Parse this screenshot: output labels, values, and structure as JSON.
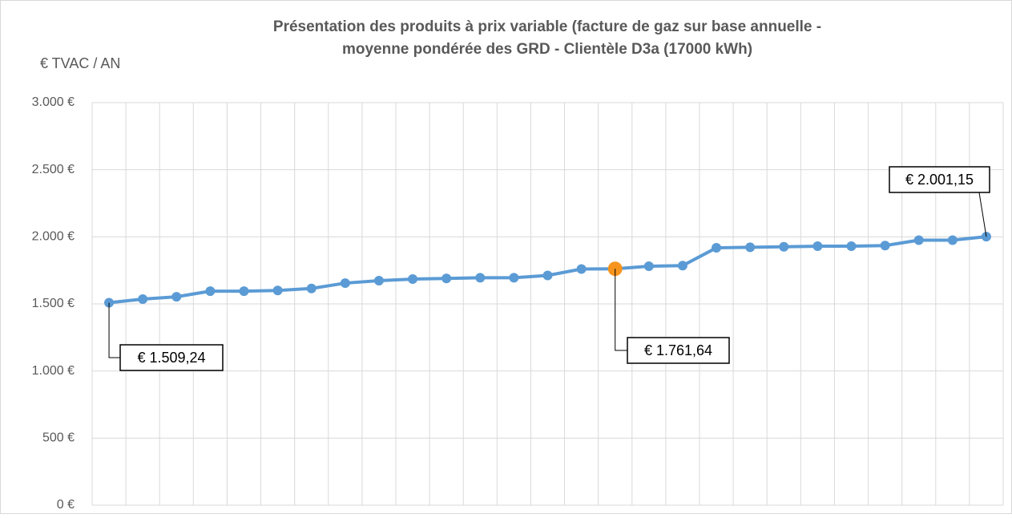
{
  "chart_data": {
    "type": "line",
    "title": [
      "Présentation des produits à prix variable  (facture de gaz sur base annuelle -",
      "moyenne pondérée des GRD - Clientèle D3a (17000 kWh)"
    ],
    "y_label": "€ TVAC / AN",
    "categories": [
      null,
      null,
      null,
      null,
      null,
      null,
      null,
      null,
      null,
      null,
      null,
      null,
      null,
      null,
      null,
      null,
      null,
      null,
      null,
      null,
      null,
      null,
      null,
      null,
      null,
      null,
      null
    ],
    "series": [
      {
        "color": "#5b9bd5",
        "values": [
          1509.24,
          1536,
          1553,
          1595,
          1595,
          1600,
          1615,
          1655,
          1673,
          1685,
          1690,
          1695,
          1695,
          1712,
          1760,
          1761.64,
          1781,
          1785,
          1918,
          1922,
          1926,
          1930,
          1930,
          1935,
          1975,
          1975,
          2001.15
        ],
        "value_labels": [
          "€ 1.509,24",
          null,
          null,
          null,
          null,
          null,
          null,
          null,
          null,
          null,
          null,
          null,
          null,
          null,
          null,
          "€ 1.761,64",
          null,
          null,
          null,
          null,
          null,
          null,
          null,
          null,
          null,
          null,
          "€ 2.001,15"
        ],
        "point_colors": [
          null,
          null,
          null,
          null,
          null,
          null,
          null,
          null,
          null,
          null,
          null,
          null,
          null,
          null,
          null,
          "#f7941d",
          null,
          null,
          null,
          null,
          null,
          null,
          null,
          null,
          null,
          null,
          null
        ]
      }
    ],
    "ylim": [
      0,
      3000
    ],
    "yticks": [
      {
        "value": 0,
        "label": "0 €"
      },
      {
        "value": 500,
        "label": "500 €"
      },
      {
        "value": 1000,
        "label": "1.000 €"
      },
      {
        "value": 1500,
        "label": "1.500 €"
      },
      {
        "value": 2000,
        "label": "2.000 €"
      },
      {
        "value": 2500,
        "label": "2.500 €"
      },
      {
        "value": 3000,
        "label": "3.000 €"
      }
    ],
    "grid": true
  }
}
